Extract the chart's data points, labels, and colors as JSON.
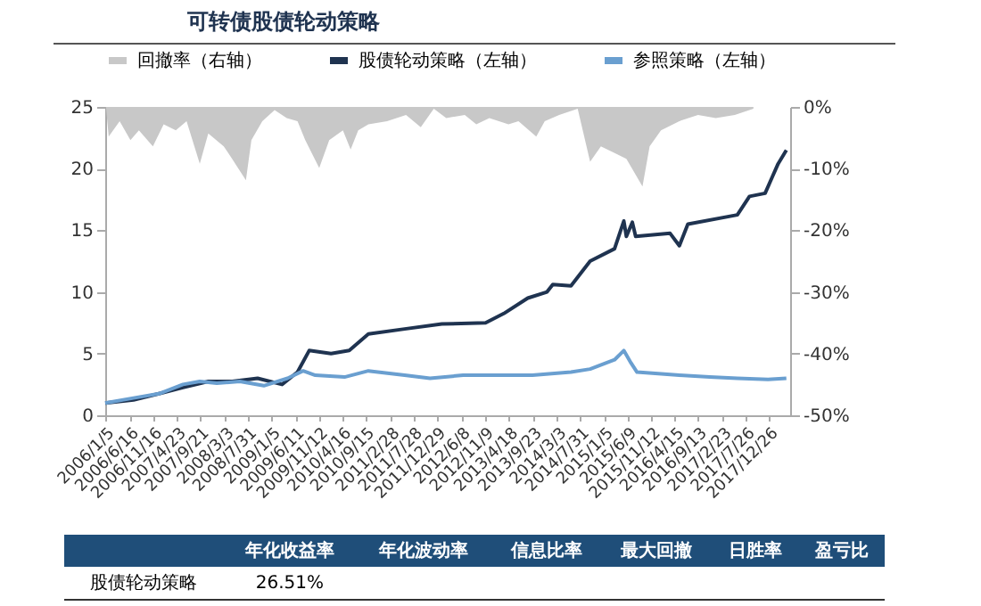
{
  "chart_data": {
    "type": "line",
    "title": "可转债股债轮动策略",
    "legend": "top",
    "grid": false,
    "xlim": [
      "2006-01-05",
      "2018-05-15"
    ],
    "xticks": [
      {
        "value": "2006-01-05",
        "label": "2006/1/5"
      },
      {
        "value": "2006-06-16",
        "label": "2006/6/16"
      },
      {
        "value": "2006-11-16",
        "label": "2006/11/16"
      },
      {
        "value": "2007-04-23",
        "label": "2007/4/23"
      },
      {
        "value": "2007-09-21",
        "label": "2007/9/21"
      },
      {
        "value": "2008-03-03",
        "label": "2008/3/3"
      },
      {
        "value": "2008-07-31",
        "label": "2008/7/31"
      },
      {
        "value": "2009-01-05",
        "label": "2009/1/5"
      },
      {
        "value": "2009-06-11",
        "label": "2009/6/11"
      },
      {
        "value": "2009-11-12",
        "label": "2009/11/12"
      },
      {
        "value": "2010-04-16",
        "label": "2010/4/16"
      },
      {
        "value": "2010-09-15",
        "label": "2010/9/15"
      },
      {
        "value": "2011-02-28",
        "label": "2011/2/28"
      },
      {
        "value": "2011-07-28",
        "label": "2011/7/28"
      },
      {
        "value": "2011-12-29",
        "label": "2011/12/29"
      },
      {
        "value": "2012-06-08",
        "label": "2012/6/8"
      },
      {
        "value": "2012-11-09",
        "label": "2012/11/9"
      },
      {
        "value": "2013-04-18",
        "label": "2013/4/18"
      },
      {
        "value": "2013-09-23",
        "label": "2013/9/23"
      },
      {
        "value": "2014-03-03",
        "label": "2014/3/3"
      },
      {
        "value": "2014-07-31",
        "label": "2014/7/31"
      },
      {
        "value": "2015-01-05",
        "label": "2015/1/5"
      },
      {
        "value": "2015-06-09",
        "label": "2015/6/9"
      },
      {
        "value": "2015-11-12",
        "label": "2015/11/12"
      },
      {
        "value": "2016-04-15",
        "label": "2016/4/15"
      },
      {
        "value": "2016-09-13",
        "label": "2016/9/13"
      },
      {
        "value": "2017-02-23",
        "label": "2017/2/23"
      },
      {
        "value": "2017-07-26",
        "label": "2017/7/26"
      },
      {
        "value": "2017-12-26",
        "label": "2017/12/26"
      }
    ],
    "ylim": [
      0,
      25
    ],
    "yticks": [
      0,
      5,
      10,
      15,
      20,
      25
    ],
    "y2lim": [
      -50,
      0
    ],
    "y2ticks": [
      {
        "value": -50,
        "label": "-50%"
      },
      {
        "value": -40,
        "label": "-40%"
      },
      {
        "value": -30,
        "label": "-30%"
      },
      {
        "value": -20,
        "label": "-20%"
      },
      {
        "value": -10,
        "label": "-10%"
      },
      {
        "value": 0,
        "label": "0%"
      }
    ],
    "series": [
      {
        "name": "回撤率（右轴）",
        "type": "area",
        "axis": "y2",
        "color": "#c8c8c8",
        "x": [
          "2006-01-10",
          "2006-01-28",
          "2006-04-10",
          "2006-06-20",
          "2006-08-15",
          "2006-11-15",
          "2007-01-25",
          "2007-04-15",
          "2007-06-25",
          "2007-09-20",
          "2007-11-15",
          "2008-02-25",
          "2008-04-20",
          "2008-07-20",
          "2008-08-25",
          "2008-11-05",
          "2009-01-25",
          "2009-04-15",
          "2009-06-25",
          "2009-08-15",
          "2009-11-15",
          "2010-01-20",
          "2010-04-20",
          "2010-06-10",
          "2010-07-30",
          "2010-10-05",
          "2011-02-05",
          "2011-06-10",
          "2011-09-15",
          "2011-12-10",
          "2012-03-01",
          "2012-07-01",
          "2012-09-15",
          "2012-12-10",
          "2013-04-15",
          "2013-06-20",
          "2013-10-15",
          "2013-12-10",
          "2014-03-15",
          "2014-07-15",
          "2014-10-05",
          "2014-12-15",
          "2015-03-10",
          "2015-06-01",
          "2015-09-15",
          "2015-11-01",
          "2016-01-15",
          "2016-05-15",
          "2016-09-15",
          "2017-01-10",
          "2017-05-15",
          "2017-09-15"
        ],
        "values": [
          0,
          -4.8,
          -2.3,
          -5.4,
          -3.8,
          -6.4,
          -2.8,
          -3.8,
          -2.3,
          -9.2,
          -4.3,
          -6.4,
          -8.4,
          -11.9,
          -5.4,
          -2.3,
          -0.5,
          -1.8,
          -2.3,
          -5.4,
          -9.9,
          -5.4,
          -3.8,
          -6.9,
          -3.8,
          -2.8,
          -2.3,
          -1.3,
          -3.3,
          -0.3,
          -1.8,
          -1.3,
          -2.8,
          -1.8,
          -2.8,
          -2.3,
          -4.8,
          -2.3,
          -1.3,
          -0.3,
          -8.9,
          -6.4,
          -7.4,
          -8.4,
          -12.9,
          -6.4,
          -3.8,
          -2.3,
          -1.3,
          -1.8,
          -1.3,
          -0.3
        ]
      },
      {
        "name": "股债轮动策略（左轴）",
        "color": "#1f3350",
        "x": [
          "2006-01-05",
          "2006-07-10",
          "2006-12-25",
          "2007-06-01",
          "2007-11-15",
          "2008-04-20",
          "2008-10-05",
          "2009-03-15",
          "2009-06-25",
          "2009-09-10",
          "2010-02-01",
          "2010-06-01",
          "2010-10-05",
          "2011-06-01",
          "2012-02-01",
          "2012-11-15",
          "2013-03-15",
          "2013-08-20",
          "2013-12-25",
          "2014-02-01",
          "2014-06-01",
          "2014-10-05",
          "2015-03-15",
          "2015-05-15",
          "2015-06-01",
          "2015-07-10",
          "2015-08-01",
          "2016-03-15",
          "2016-05-15",
          "2016-07-10",
          "2017-06-01",
          "2017-08-20",
          "2017-12-01",
          "2018-01-20",
          "2018-02-25",
          "2018-04-20"
        ],
        "values": [
          1.0,
          1.25,
          1.75,
          2.25,
          2.75,
          2.75,
          3.0,
          2.5,
          3.5,
          5.25,
          5.0,
          5.25,
          6.6,
          7.0,
          7.4,
          7.5,
          8.25,
          9.5,
          10.0,
          10.6,
          10.5,
          12.5,
          13.5,
          15.75,
          14.5,
          15.65,
          14.5,
          14.75,
          13.75,
          15.5,
          16.25,
          17.75,
          18.0,
          19.4,
          20.4,
          21.5
        ]
      },
      {
        "name": "参照策略（左轴）",
        "color": "#6a9fd0",
        "x": [
          "2006-01-05",
          "2006-07-10",
          "2006-12-25",
          "2007-06-01",
          "2007-09-20",
          "2008-01-10",
          "2008-06-10",
          "2008-11-15",
          "2009-04-20",
          "2009-08-01",
          "2009-10-20",
          "2010-05-01",
          "2010-10-05",
          "2011-06-01",
          "2011-11-15",
          "2012-06-20",
          "2013-09-20",
          "2014-06-01",
          "2014-10-05",
          "2015-03-15",
          "2015-05-15",
          "2015-07-01",
          "2015-08-10",
          "2016-05-15",
          "2016-12-01",
          "2017-06-01",
          "2017-12-20",
          "2018-04-20"
        ],
        "values": [
          1.0,
          1.4,
          1.75,
          2.5,
          2.75,
          2.6,
          2.75,
          2.4,
          3.0,
          3.6,
          3.25,
          3.1,
          3.6,
          3.25,
          3.0,
          3.25,
          3.25,
          3.5,
          3.75,
          4.5,
          5.25,
          4.25,
          3.5,
          3.25,
          3.1,
          3.0,
          2.9,
          3.0
        ]
      }
    ],
    "annotations": [
      "年化收益率",
      "年化波动率",
      "信息比率",
      "最大回撤",
      "日胜率",
      "盈亏比",
      "股债轮动策略",
      "26.51%"
    ]
  }
}
